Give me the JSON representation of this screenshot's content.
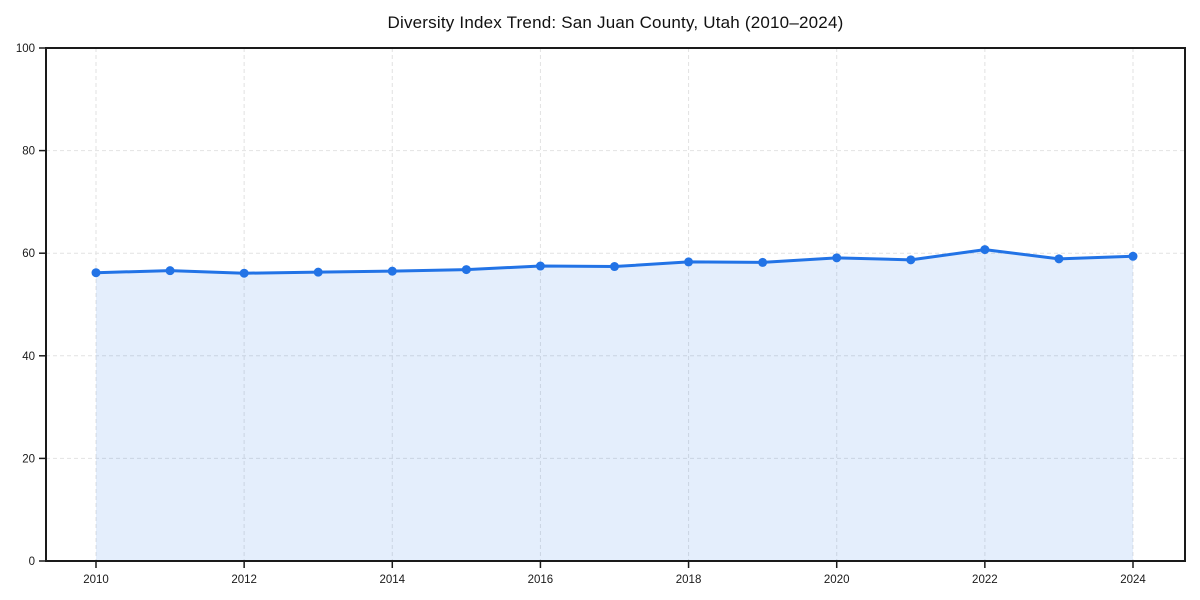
{
  "chart_data": {
    "type": "area",
    "title": "Diversity Index Trend: San Juan County, Utah (2010–2024)",
    "x": [
      2010,
      2011,
      2012,
      2013,
      2014,
      2015,
      2016,
      2017,
      2018,
      2019,
      2020,
      2021,
      2022,
      2023,
      2024
    ],
    "series": [
      {
        "name": "Diversity Index",
        "values": [
          56.2,
          56.6,
          56.1,
          56.3,
          56.5,
          56.8,
          57.5,
          57.4,
          58.3,
          58.2,
          59.1,
          58.7,
          60.7,
          58.9,
          59.4
        ]
      }
    ],
    "xlabel": "",
    "ylabel": "",
    "ylim": [
      0,
      100
    ],
    "yticks": [
      0,
      20,
      40,
      60,
      80,
      100
    ],
    "xticks": [
      2010,
      2012,
      2014,
      2016,
      2018,
      2020,
      2022,
      2024
    ],
    "grid": "dashed-both-axes",
    "legend": "none",
    "colors": {
      "line": "#2273e6",
      "marker": "#2273e6",
      "area_fill": "rgba(34,115,230,0.12)",
      "gridline": "#e2e2e2",
      "spine": "#1a1a1a",
      "tick_label": "#1a1a1a",
      "background": "#ffffff"
    }
  }
}
